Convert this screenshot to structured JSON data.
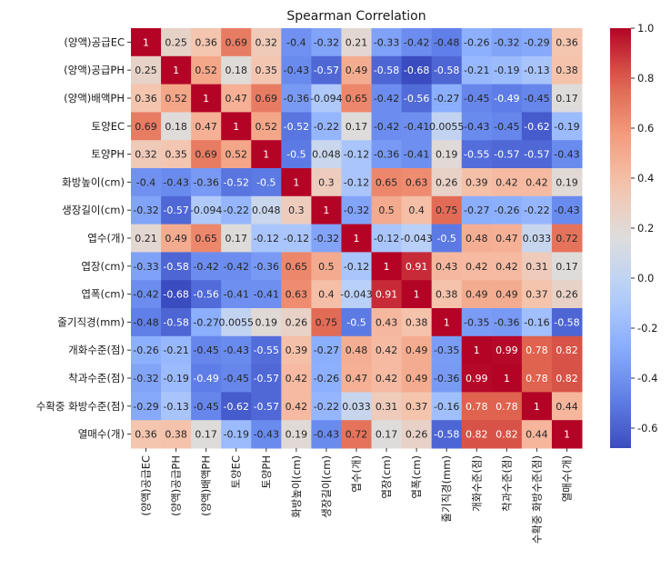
{
  "chart_data": {
    "type": "heatmap",
    "title": "Spearman Correlation",
    "xlabel": "",
    "ylabel": "",
    "labels": [
      "(양액)공급EC",
      "(양액)공급PH",
      "(양액)배액PH",
      "토양EC",
      "토양PH",
      "화방높이(cm)",
      "생장길이(cm)",
      "엽수(개)",
      "엽장(cm)",
      "엽폭(cm)",
      "줄기직경(mm)",
      "개화수준(점)",
      "착과수준(점)",
      "수확중 화방수준(점)",
      "열매수(개)"
    ],
    "matrix": [
      [
        1,
        0.25,
        0.36,
        0.69,
        0.32,
        -0.4,
        -0.32,
        0.21,
        -0.33,
        -0.42,
        -0.48,
        -0.26,
        -0.32,
        -0.29,
        0.36
      ],
      [
        0.25,
        1,
        0.52,
        0.18,
        0.35,
        -0.43,
        -0.57,
        0.49,
        -0.58,
        -0.68,
        -0.58,
        -0.21,
        -0.19,
        -0.13,
        0.38
      ],
      [
        0.36,
        0.52,
        1,
        0.47,
        0.69,
        -0.36,
        -0.094,
        0.65,
        -0.42,
        -0.56,
        -0.27,
        -0.45,
        -0.49,
        -0.45,
        0.17
      ],
      [
        0.69,
        0.18,
        0.47,
        1,
        0.52,
        -0.52,
        -0.22,
        0.17,
        -0.42,
        -0.41,
        0.0055,
        -0.43,
        -0.45,
        -0.62,
        -0.19
      ],
      [
        0.32,
        0.35,
        0.69,
        0.52,
        1,
        -0.5,
        0.048,
        -0.12,
        -0.36,
        -0.41,
        0.19,
        -0.55,
        -0.57,
        -0.57,
        -0.43
      ],
      [
        -0.4,
        -0.43,
        -0.36,
        -0.52,
        -0.5,
        1,
        0.3,
        -0.12,
        0.65,
        0.63,
        0.26,
        0.39,
        0.42,
        0.42,
        0.19
      ],
      [
        -0.32,
        -0.57,
        -0.094,
        -0.22,
        0.048,
        0.3,
        1,
        -0.32,
        0.5,
        0.4,
        0.75,
        -0.27,
        -0.26,
        -0.22,
        -0.43
      ],
      [
        0.21,
        0.49,
        0.65,
        0.17,
        -0.12,
        -0.12,
        -0.32,
        1,
        -0.12,
        -0.043,
        -0.5,
        0.48,
        0.47,
        0.033,
        0.72
      ],
      [
        -0.33,
        -0.58,
        -0.42,
        -0.42,
        -0.36,
        0.65,
        0.5,
        -0.12,
        1,
        0.91,
        0.43,
        0.42,
        0.42,
        0.31,
        0.17
      ],
      [
        -0.42,
        -0.68,
        -0.56,
        -0.41,
        -0.41,
        0.63,
        0.4,
        -0.043,
        0.91,
        1,
        0.38,
        0.49,
        0.49,
        0.37,
        0.26
      ],
      [
        -0.48,
        -0.58,
        -0.27,
        0.0055,
        0.19,
        0.26,
        0.75,
        -0.5,
        0.43,
        0.38,
        1,
        -0.35,
        -0.36,
        -0.16,
        -0.58
      ],
      [
        -0.26,
        -0.21,
        -0.45,
        -0.43,
        -0.55,
        0.39,
        -0.27,
        0.48,
        0.42,
        0.49,
        -0.35,
        1,
        0.99,
        0.78,
        0.82
      ],
      [
        -0.32,
        -0.19,
        -0.49,
        -0.45,
        -0.57,
        0.42,
        -0.26,
        0.47,
        0.42,
        0.49,
        -0.36,
        0.99,
        1,
        0.78,
        0.82
      ],
      [
        -0.29,
        -0.13,
        -0.45,
        -0.62,
        -0.57,
        0.42,
        -0.22,
        0.033,
        0.31,
        0.37,
        -0.16,
        0.78,
        0.78,
        1,
        0.44
      ],
      [
        0.36,
        0.38,
        0.17,
        -0.19,
        -0.43,
        0.19,
        -0.43,
        0.72,
        0.17,
        0.26,
        -0.58,
        0.82,
        0.82,
        0.44,
        1
      ]
    ],
    "colormap": "coolwarm",
    "vmin": -0.68,
    "vmax": 1.0,
    "annotations": true,
    "colorbar": {
      "ticks": [
        1.0,
        0.8,
        0.6,
        0.4,
        0.2,
        0.0,
        -0.2,
        -0.4,
        -0.6
      ],
      "tick_labels": [
        "1.0",
        "0.8",
        "0.6",
        "0.4",
        "0.2",
        "0.0",
        "-0.2",
        "-0.4",
        "-0.6"
      ],
      "placement": "right"
    },
    "grid": false,
    "legend": "none"
  }
}
